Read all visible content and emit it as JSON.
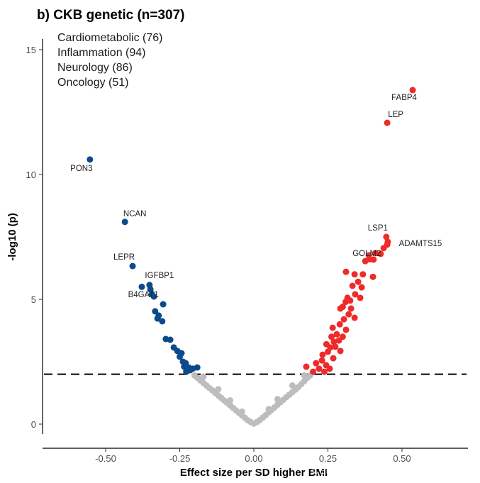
{
  "chart_data": {
    "type": "scatter",
    "title": "b) CKB genetic (n=307)",
    "xlabel": "Effect size per SD higher BMI",
    "ylabel": "-log10 (p)",
    "xlim": [
      -0.713,
      0.722
    ],
    "ylim": [
      -0.4,
      15.6
    ],
    "xticks": [
      -0.5,
      -0.25,
      0,
      0.25,
      0.5
    ],
    "xtick_labels": [
      "-0.50",
      "-0.25",
      "0.00",
      "0.25",
      "0.50"
    ],
    "yticks": [
      0,
      5,
      10,
      15
    ],
    "ytick_labels": [
      "0",
      "5",
      "10",
      "15"
    ],
    "threshold_line": {
      "y": 2,
      "style": "dashed"
    },
    "grid": false,
    "legend_text": [
      "Cardiometabolic (76)",
      "Inflammation (94)",
      "Neurology (86)",
      "Oncology (51)"
    ],
    "legend_placement": "top-left",
    "colors": {
      "negative": "#0b4a8c",
      "positive": "#ee2a2a",
      "nonsignificant": "#bdbdbd"
    },
    "labeled_points": [
      {
        "label": "FABP4",
        "x": 0.536,
        "y": 13.38,
        "group": "positive"
      },
      {
        "label": "LEP",
        "x": 0.45,
        "y": 12.07,
        "group": "positive"
      },
      {
        "label": "PON3",
        "x": -0.553,
        "y": 10.6,
        "group": "negative"
      },
      {
        "label": "NCAN",
        "x": -0.435,
        "y": 8.1,
        "group": "negative"
      },
      {
        "label": "LEPR",
        "x": -0.409,
        "y": 6.33,
        "group": "negative"
      },
      {
        "label": "IGFBP1",
        "x": -0.352,
        "y": 5.57,
        "group": "negative"
      },
      {
        "label": "B4GAT1",
        "x": -0.344,
        "y": 5.2,
        "group": "negative"
      },
      {
        "label": "LSP1",
        "x": 0.447,
        "y": 7.5,
        "group": "positive"
      },
      {
        "label": "ADAMTS15",
        "x": 0.452,
        "y": 7.3,
        "group": "positive"
      },
      {
        "label": "GOLM2",
        "x": 0.41,
        "y": 6.85,
        "group": "positive"
      }
    ],
    "series": [
      {
        "group": "negative",
        "points": [
          [
            -0.378,
            5.5
          ],
          [
            -0.349,
            5.4
          ],
          [
            -0.337,
            5.11
          ],
          [
            -0.306,
            4.8
          ],
          [
            -0.333,
            4.52
          ],
          [
            -0.321,
            4.35
          ],
          [
            -0.325,
            4.23
          ],
          [
            -0.309,
            4.12
          ],
          [
            -0.297,
            3.41
          ],
          [
            -0.282,
            3.38
          ],
          [
            -0.27,
            3.07
          ],
          [
            -0.258,
            2.93
          ],
          [
            -0.244,
            2.84
          ],
          [
            -0.25,
            2.7
          ],
          [
            -0.239,
            2.5
          ],
          [
            -0.23,
            2.44
          ],
          [
            -0.235,
            2.3
          ],
          [
            -0.22,
            2.27
          ],
          [
            -0.206,
            2.22
          ],
          [
            -0.191,
            2.27
          ],
          [
            -0.215,
            2.16
          ],
          [
            -0.228,
            2.1
          ]
        ]
      },
      {
        "group": "positive",
        "points": [
          [
            0.311,
            6.1
          ],
          [
            0.34,
            6.0
          ],
          [
            0.368,
            6.0
          ],
          [
            0.402,
            5.9
          ],
          [
            0.352,
            5.7
          ],
          [
            0.333,
            5.54
          ],
          [
            0.364,
            5.48
          ],
          [
            0.342,
            5.2
          ],
          [
            0.316,
            5.06
          ],
          [
            0.359,
            5.06
          ],
          [
            0.292,
            4.63
          ],
          [
            0.328,
            4.63
          ],
          [
            0.31,
            4.9
          ],
          [
            0.304,
            4.2
          ],
          [
            0.34,
            4.26
          ],
          [
            0.32,
            4.4
          ],
          [
            0.266,
            3.86
          ],
          [
            0.311,
            3.78
          ],
          [
            0.29,
            4.0
          ],
          [
            0.28,
            3.6
          ],
          [
            0.3,
            3.5
          ],
          [
            0.287,
            3.35
          ],
          [
            0.27,
            3.3
          ],
          [
            0.258,
            3.07
          ],
          [
            0.292,
            2.93
          ],
          [
            0.275,
            3.1
          ],
          [
            0.232,
            2.78
          ],
          [
            0.268,
            2.64
          ],
          [
            0.25,
            2.9
          ],
          [
            0.21,
            2.44
          ],
          [
            0.244,
            2.36
          ],
          [
            0.23,
            2.55
          ],
          [
            0.177,
            2.3
          ],
          [
            0.22,
            2.22
          ],
          [
            0.256,
            2.22
          ],
          [
            0.2,
            2.1
          ],
          [
            0.238,
            2.1
          ],
          [
            0.388,
            6.76
          ],
          [
            0.404,
            6.59
          ],
          [
            0.376,
            6.53
          ],
          [
            0.428,
            6.82
          ],
          [
            0.45,
            7.19
          ],
          [
            0.438,
            7.05
          ],
          [
            0.39,
            6.6
          ],
          [
            0.3,
            4.7
          ],
          [
            0.325,
            4.95
          ],
          [
            0.262,
            3.5
          ],
          [
            0.245,
            3.2
          ]
        ]
      },
      {
        "group": "nonsignificant",
        "points": [
          [
            -0.2,
            1.95
          ],
          [
            -0.19,
            1.85
          ],
          [
            -0.18,
            1.75
          ],
          [
            -0.17,
            1.65
          ],
          [
            -0.16,
            1.55
          ],
          [
            -0.15,
            1.45
          ],
          [
            -0.14,
            1.35
          ],
          [
            -0.13,
            1.25
          ],
          [
            -0.12,
            1.15
          ],
          [
            -0.11,
            1.05
          ],
          [
            -0.1,
            0.95
          ],
          [
            -0.09,
            0.85
          ],
          [
            -0.08,
            0.75
          ],
          [
            -0.07,
            0.65
          ],
          [
            -0.06,
            0.55
          ],
          [
            -0.05,
            0.45
          ],
          [
            -0.04,
            0.35
          ],
          [
            -0.03,
            0.25
          ],
          [
            -0.02,
            0.15
          ],
          [
            -0.01,
            0.08
          ],
          [
            0.0,
            0.02
          ],
          [
            0.01,
            0.08
          ],
          [
            0.02,
            0.16
          ],
          [
            0.03,
            0.26
          ],
          [
            0.04,
            0.36
          ],
          [
            0.05,
            0.47
          ],
          [
            0.06,
            0.57
          ],
          [
            0.07,
            0.67
          ],
          [
            0.08,
            0.78
          ],
          [
            0.09,
            0.88
          ],
          [
            0.1,
            0.98
          ],
          [
            0.11,
            1.08
          ],
          [
            0.12,
            1.18
          ],
          [
            0.13,
            1.28
          ],
          [
            0.14,
            1.38
          ],
          [
            0.15,
            1.48
          ],
          [
            0.16,
            1.6
          ],
          [
            0.17,
            1.72
          ],
          [
            0.18,
            1.85
          ],
          [
            0.19,
            1.95
          ],
          [
            -0.17,
            1.9
          ],
          [
            -0.12,
            1.4
          ],
          [
            0.13,
            1.55
          ],
          [
            0.17,
            1.95
          ],
          [
            0.08,
            1.0
          ],
          [
            -0.08,
            0.95
          ],
          [
            0.05,
            0.6
          ],
          [
            -0.04,
            0.5
          ]
        ]
      }
    ]
  },
  "watermark": "CSDN @Crystallize_Malfoy"
}
